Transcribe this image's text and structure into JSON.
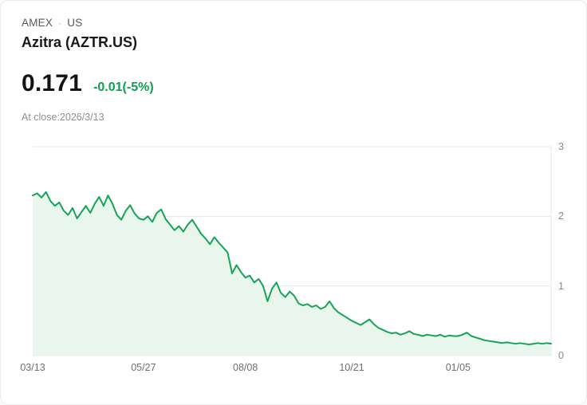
{
  "header": {
    "exchange": "AMEX",
    "separator": "·",
    "region": "US",
    "title": "Azitra (AZTR.US)"
  },
  "quote": {
    "price": "0.171",
    "change": "-0.01(-5%)",
    "close_note": "At close:2026/3/13"
  },
  "colors": {
    "accent_green": "#0f9d51",
    "line_green": "#17a355",
    "fill_green": "#e9f6ee",
    "grid": "#e7e7e7",
    "axis_text": "#85898f"
  },
  "chart_data": {
    "type": "area",
    "title": "Azitra (AZTR.US) price history",
    "ylabel": "",
    "xlabel": "",
    "ylim": [
      0,
      3
    ],
    "yticks": [
      0,
      1,
      2,
      3
    ],
    "grid": true,
    "legend": false,
    "xtick_labels": [
      "03/13",
      "05/27",
      "08/08",
      "10/21",
      "01/05"
    ],
    "xtick_indices": [
      0,
      25,
      48,
      72,
      96
    ],
    "series_name": "AZTR.US close price",
    "values": [
      2.3,
      2.33,
      2.27,
      2.35,
      2.22,
      2.15,
      2.2,
      2.08,
      2.02,
      2.12,
      1.97,
      2.06,
      2.15,
      2.05,
      2.18,
      2.28,
      2.15,
      2.3,
      2.18,
      2.02,
      1.95,
      2.08,
      2.16,
      2.04,
      1.97,
      1.95,
      2.0,
      1.92,
      2.05,
      2.1,
      1.96,
      1.88,
      1.8,
      1.86,
      1.78,
      1.88,
      1.95,
      1.85,
      1.75,
      1.68,
      1.6,
      1.7,
      1.62,
      1.55,
      1.48,
      1.18,
      1.3,
      1.2,
      1.12,
      1.15,
      1.05,
      1.1,
      1.0,
      0.78,
      0.96,
      1.05,
      0.9,
      0.84,
      0.92,
      0.86,
      0.75,
      0.72,
      0.74,
      0.7,
      0.72,
      0.67,
      0.7,
      0.78,
      0.68,
      0.62,
      0.58,
      0.54,
      0.5,
      0.47,
      0.44,
      0.48,
      0.52,
      0.45,
      0.4,
      0.37,
      0.34,
      0.32,
      0.33,
      0.3,
      0.32,
      0.35,
      0.31,
      0.3,
      0.28,
      0.3,
      0.29,
      0.28,
      0.3,
      0.27,
      0.29,
      0.28,
      0.28,
      0.3,
      0.33,
      0.28,
      0.26,
      0.24,
      0.22,
      0.21,
      0.2,
      0.19,
      0.18,
      0.19,
      0.18,
      0.17,
      0.18,
      0.17,
      0.16,
      0.17,
      0.18,
      0.17,
      0.18,
      0.171
    ]
  }
}
